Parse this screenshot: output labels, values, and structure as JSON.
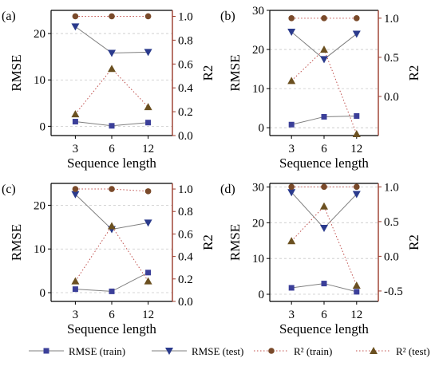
{
  "legend": [
    {
      "label": "RMSE (train)",
      "color": "#3b3f99",
      "marker": "square",
      "line": "solid"
    },
    {
      "label": "RMSE (test)",
      "color": "#2a3a8c",
      "marker": "triangle-down",
      "line": "solid"
    },
    {
      "label": "R² (train)",
      "color": "#7a4a2a",
      "marker": "circle",
      "line": "dotted"
    },
    {
      "label": "R² (test)",
      "color": "#6b5020",
      "marker": "triangle-up",
      "line": "dotted"
    }
  ],
  "colors": {
    "right_axis": "#9a3a2a",
    "grid": "#c8c8c8",
    "r2_line": "#c0504d",
    "rmse_line": "#7f7f7f"
  },
  "chart_data": [
    {
      "panel": "(a)",
      "type": "line",
      "categories": [
        "3",
        "6",
        "12"
      ],
      "xlabel": "Sequence length",
      "ylabel": "RMSE",
      "y2label": "R2",
      "ylim": [
        -2,
        25
      ],
      "yticks": [
        "0",
        "10",
        "20"
      ],
      "y2lim": [
        0,
        1.05
      ],
      "y2ticks": [
        "0.0",
        "0.2",
        "0.4",
        "0.6",
        "0.8",
        "1.0"
      ],
      "grid": true,
      "series": [
        {
          "name": "RMSE (train)",
          "axis": "left",
          "values": [
            1.0,
            0.1,
            0.8
          ]
        },
        {
          "name": "RMSE (test)",
          "axis": "left",
          "values": [
            21.5,
            15.8,
            16.0
          ]
        },
        {
          "name": "R² (train)",
          "axis": "right",
          "values": [
            1.0,
            1.0,
            1.0
          ]
        },
        {
          "name": "R² (test)",
          "axis": "right",
          "values": [
            0.18,
            0.56,
            0.24
          ]
        }
      ]
    },
    {
      "panel": "(b)",
      "type": "line",
      "categories": [
        "3",
        "6",
        "12"
      ],
      "xlabel": "Sequence length",
      "ylabel": "RMSE",
      "y2label": "R2",
      "ylim": [
        -2,
        30
      ],
      "yticks": [
        "0",
        "10",
        "20",
        "30"
      ],
      "y2lim": [
        -0.5,
        1.1
      ],
      "y2ticks": [
        "0.0",
        "0.5",
        "1.0"
      ],
      "grid": true,
      "series": [
        {
          "name": "RMSE (train)",
          "axis": "left",
          "values": [
            0.8,
            2.8,
            3.0
          ]
        },
        {
          "name": "RMSE (test)",
          "axis": "left",
          "values": [
            24.5,
            17.5,
            24.0
          ]
        },
        {
          "name": "R² (train)",
          "axis": "right",
          "values": [
            1.0,
            1.0,
            1.0
          ]
        },
        {
          "name": "R² (test)",
          "axis": "right",
          "values": [
            0.2,
            0.6,
            -0.48
          ]
        }
      ]
    },
    {
      "panel": "(c)",
      "type": "line",
      "categories": [
        "3",
        "6",
        "12"
      ],
      "xlabel": "Sequence length",
      "ylabel": "RMSE",
      "y2label": "R2",
      "ylim": [
        -2,
        25
      ],
      "yticks": [
        "0",
        "10",
        "20"
      ],
      "y2lim": [
        0,
        1.05
      ],
      "y2ticks": [
        "0.0",
        "0.2",
        "0.4",
        "0.6",
        "0.8",
        "1.0"
      ],
      "grid": true,
      "series": [
        {
          "name": "RMSE (train)",
          "axis": "left",
          "values": [
            0.8,
            0.3,
            4.6
          ]
        },
        {
          "name": "RMSE (test)",
          "axis": "left",
          "values": [
            22.5,
            14.5,
            16.0
          ]
        },
        {
          "name": "R² (train)",
          "axis": "right",
          "values": [
            1.0,
            1.0,
            0.98
          ]
        },
        {
          "name": "R² (test)",
          "axis": "right",
          "values": [
            0.18,
            0.67,
            0.18
          ]
        }
      ]
    },
    {
      "panel": "(d)",
      "type": "line",
      "categories": [
        "3",
        "6",
        "12"
      ],
      "xlabel": "Sequence length",
      "ylabel": "RMSE",
      "y2label": "R2",
      "ylim": [
        -2,
        31
      ],
      "yticks": [
        "0",
        "10",
        "20",
        "30"
      ],
      "y2lim": [
        -0.65,
        1.05
      ],
      "y2ticks": [
        "-0.5",
        "0.0",
        "0.5",
        "1.0"
      ],
      "grid": true,
      "series": [
        {
          "name": "RMSE (train)",
          "axis": "left",
          "values": [
            1.8,
            3.0,
            0.7
          ]
        },
        {
          "name": "RMSE (test)",
          "axis": "left",
          "values": [
            28.5,
            18.5,
            28.0
          ]
        },
        {
          "name": "R² (train)",
          "axis": "right",
          "values": [
            1.0,
            1.0,
            1.0
          ]
        },
        {
          "name": "R² (test)",
          "axis": "right",
          "values": [
            0.22,
            0.72,
            -0.42
          ]
        }
      ]
    }
  ]
}
